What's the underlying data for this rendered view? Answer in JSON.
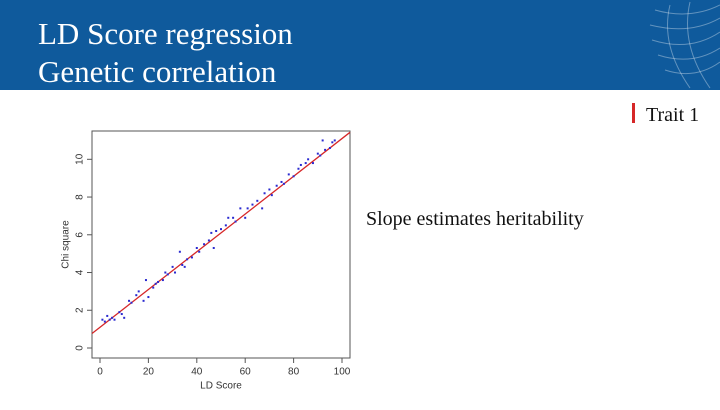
{
  "header": {
    "title_lines": [
      "LD Score regression",
      "Genetic correlation"
    ]
  },
  "trait_label": "Trait 1",
  "caption": "Slope estimates heritability",
  "chart_data": {
    "type": "scatter",
    "x_label": "LD Score",
    "y_label": "Chi square",
    "x": [
      1,
      2,
      3,
      4,
      5,
      6,
      8,
      9,
      10,
      12,
      13,
      15,
      16,
      18,
      19,
      20,
      22,
      23,
      24,
      26,
      27,
      28,
      30,
      31,
      33,
      34,
      35,
      36,
      38,
      40,
      41,
      43,
      45,
      46,
      47,
      48,
      50,
      52,
      53,
      55,
      56,
      58,
      60,
      61,
      63,
      65,
      67,
      68,
      70,
      71,
      73,
      75,
      76,
      78,
      80,
      82,
      83,
      85,
      86,
      88,
      90,
      91,
      92,
      93,
      95,
      96,
      97
    ],
    "values": [
      1.5,
      1.4,
      1.7,
      1.5,
      1.6,
      1.5,
      1.9,
      1.8,
      1.6,
      2.5,
      2.4,
      2.8,
      3.0,
      2.5,
      3.6,
      2.7,
      3.2,
      3.4,
      3.5,
      3.6,
      4.0,
      3.9,
      4.3,
      4.0,
      5.1,
      4.4,
      4.3,
      4.7,
      4.8,
      5.3,
      5.1,
      5.5,
      5.7,
      6.1,
      5.3,
      6.2,
      6.3,
      6.5,
      6.9,
      6.9,
      6.7,
      7.4,
      6.9,
      7.4,
      7.6,
      7.8,
      7.4,
      8.2,
      8.4,
      8.1,
      8.6,
      8.8,
      8.7,
      9.2,
      9.1,
      9.5,
      9.7,
      9.8,
      10.0,
      9.8,
      10.3,
      10.2,
      11.0,
      10.5,
      10.6,
      10.9,
      11.0
    ],
    "color": "#2a2ad0",
    "fit_line": {
      "x": [
        -3.3,
        103.3
      ],
      "values": [
        0.77,
        11.43
      ],
      "color": "#d62728"
    },
    "xlim": [
      -3.3,
      103.3
    ],
    "ylim": [
      -0.53,
      11.5
    ],
    "xticks": [
      0,
      20,
      40,
      60,
      80,
      100
    ],
    "yticks": [
      0,
      2,
      4,
      6,
      8,
      10
    ]
  }
}
